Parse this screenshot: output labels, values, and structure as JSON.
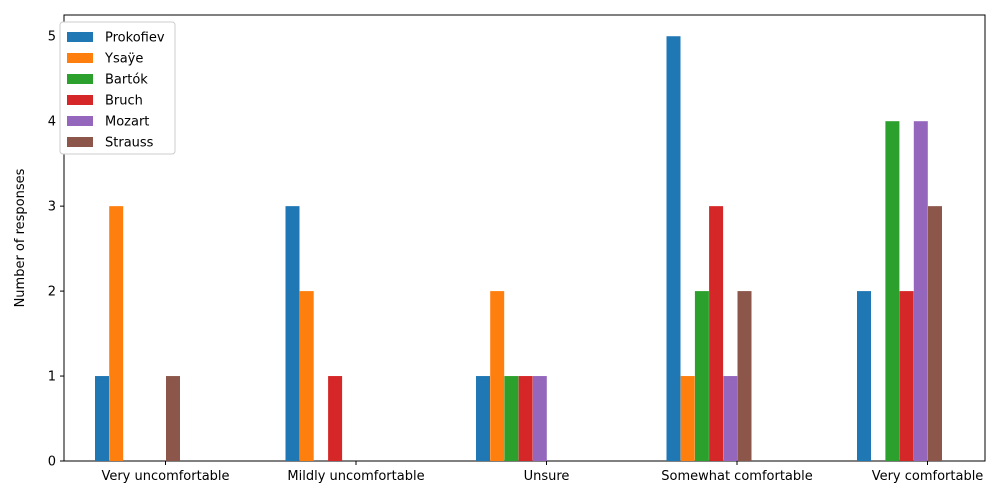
{
  "chart_data": {
    "type": "bar",
    "title": "",
    "xlabel": "",
    "ylabel": "Number of responses",
    "ylim": [
      0,
      5.25
    ],
    "yticks": [
      0,
      1,
      2,
      3,
      4,
      5
    ],
    "grid": false,
    "legend_position": "top-left",
    "categories": [
      "Very uncomfortable",
      "Mildly uncomfortable",
      "Unsure",
      "Somewhat comfortable",
      "Very comfortable"
    ],
    "series": [
      {
        "name": "Prokofiev",
        "color": "#1f77b4",
        "values": [
          1,
          3,
          1,
          5,
          2
        ]
      },
      {
        "name": "Ysaÿe",
        "color": "#ff7f0e",
        "values": [
          3,
          2,
          2,
          1,
          0
        ]
      },
      {
        "name": "Bartók",
        "color": "#2ca02c",
        "values": [
          0,
          0,
          1,
          2,
          4
        ]
      },
      {
        "name": "Bruch",
        "color": "#d62728",
        "values": [
          0,
          1,
          1,
          3,
          2
        ]
      },
      {
        "name": "Mozart",
        "color": "#9467bd",
        "values": [
          0,
          0,
          1,
          1,
          4
        ]
      },
      {
        "name": "Strauss",
        "color": "#8c564b",
        "values": [
          1,
          0,
          0,
          2,
          3
        ]
      }
    ]
  }
}
